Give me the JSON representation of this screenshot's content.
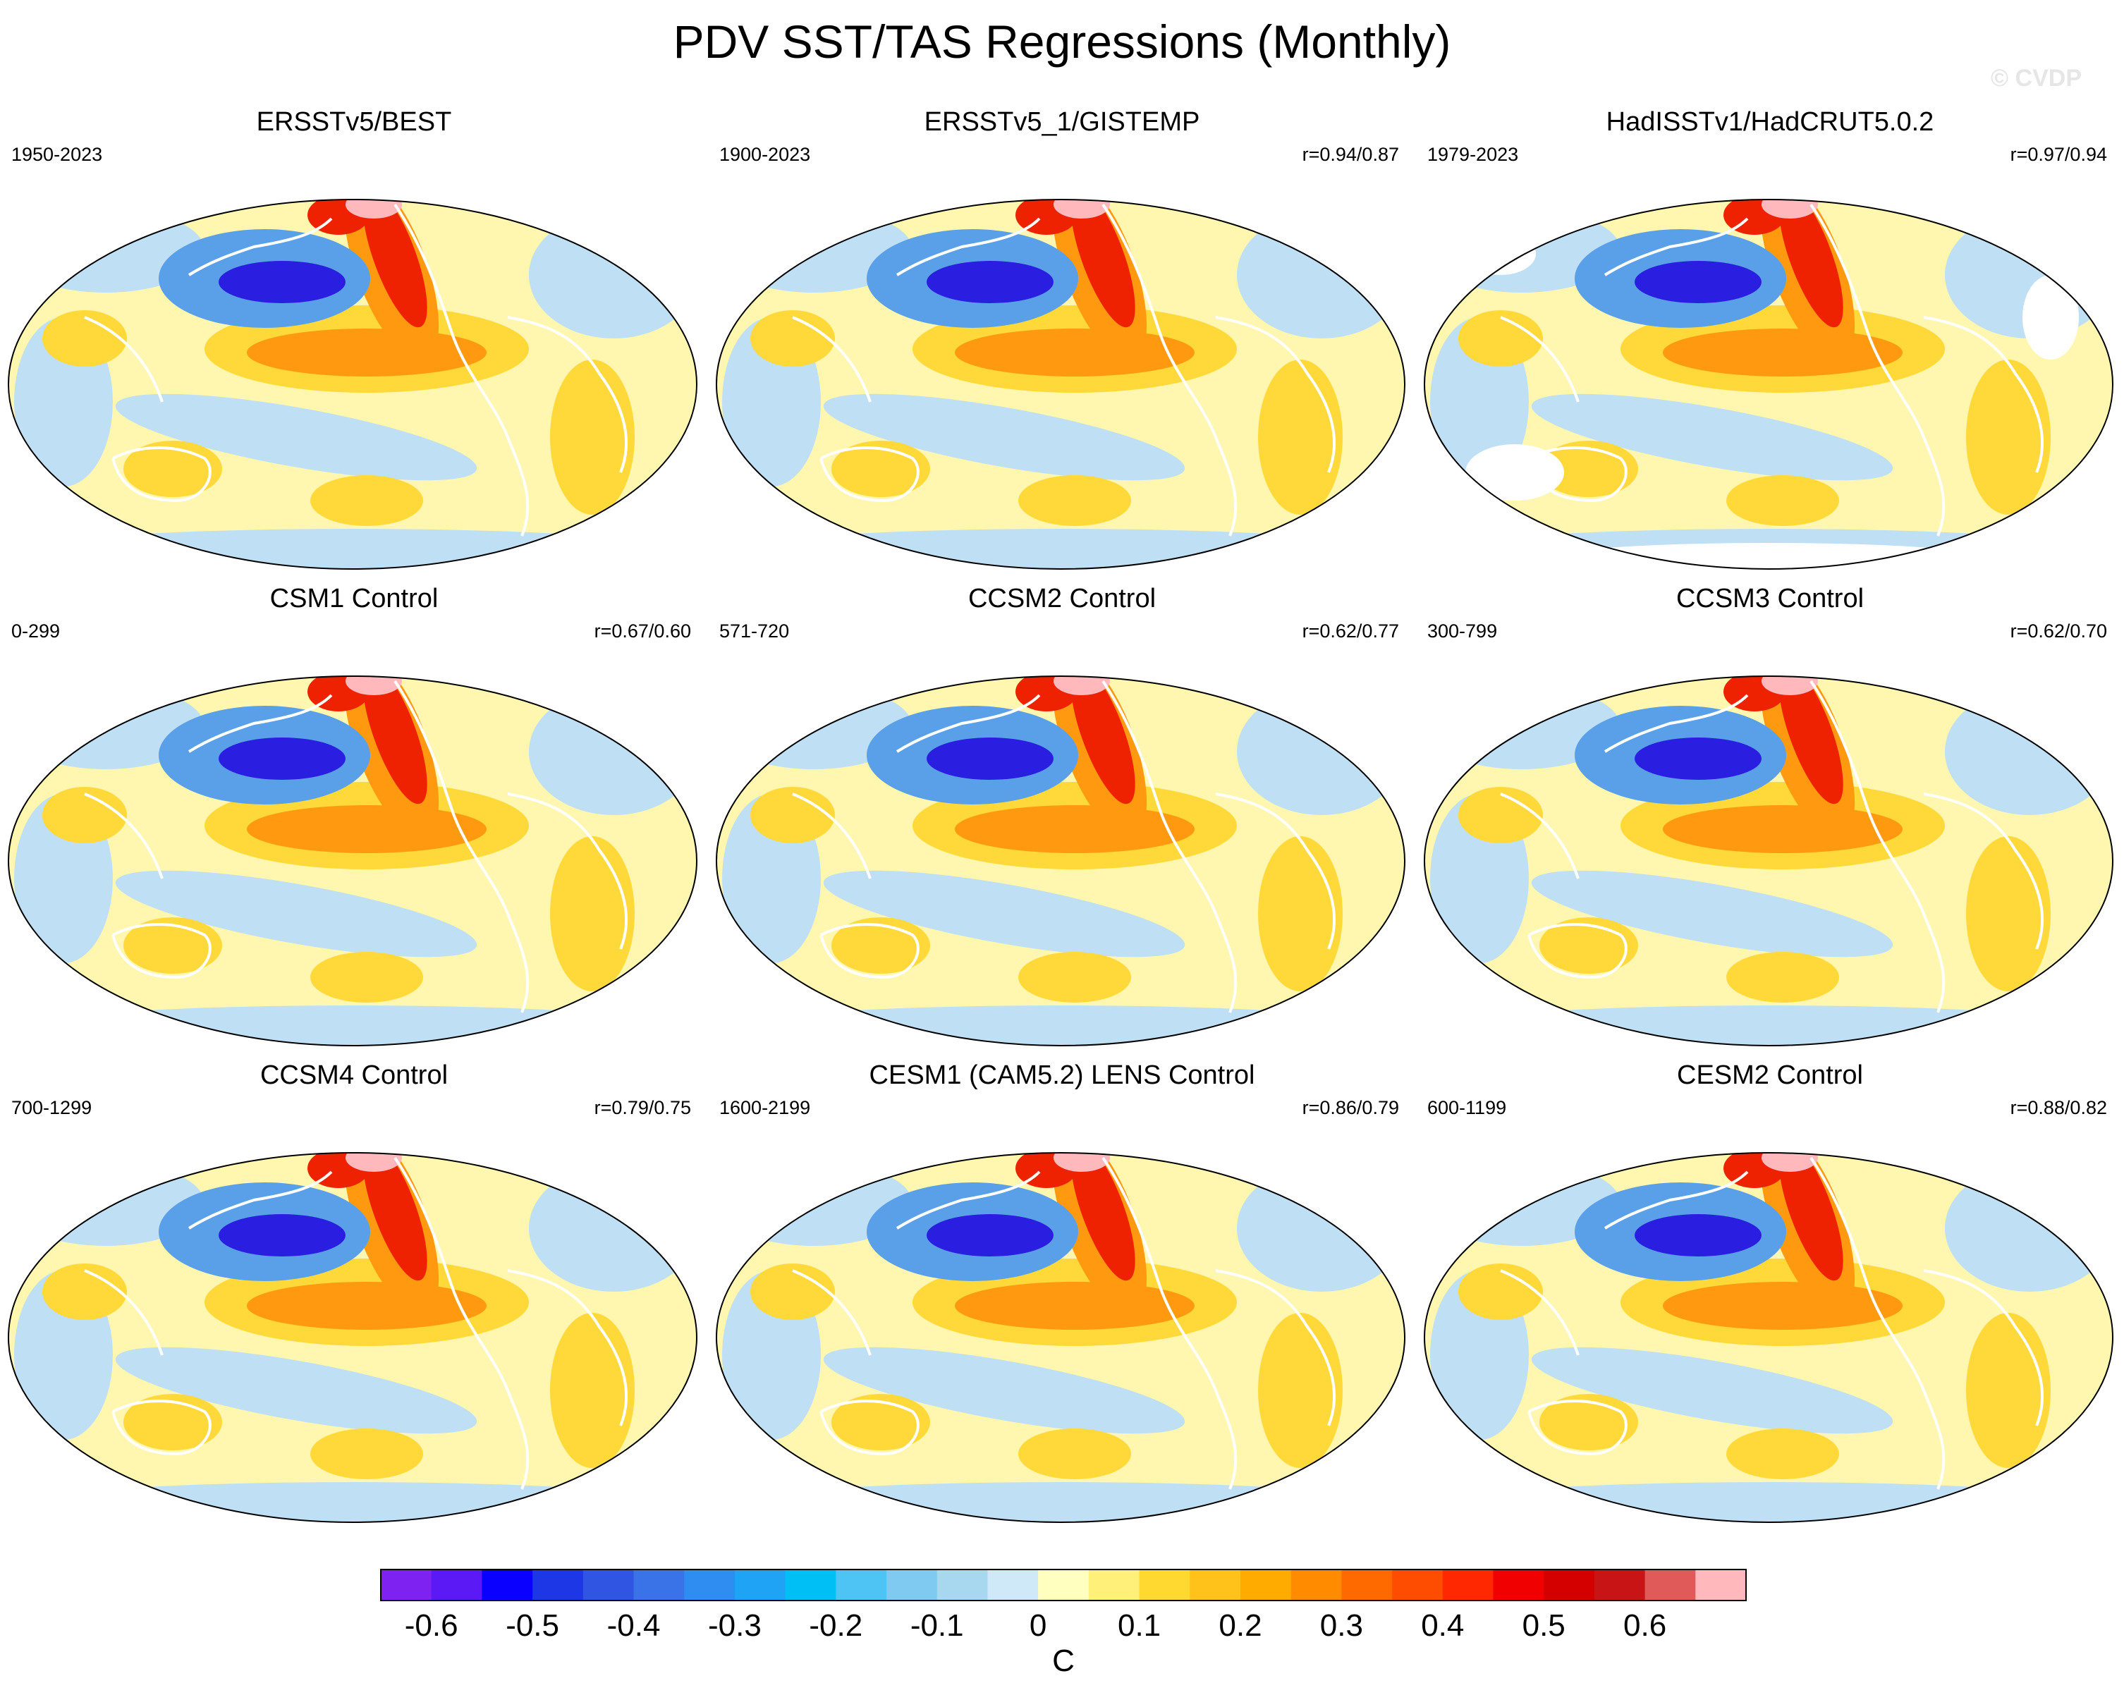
{
  "title": "PDV SST/TAS Regressions (Monthly)",
  "watermark": "© CVDP",
  "units": "C",
  "panels": [
    {
      "title": "ERSSTv5/BEST",
      "period": "1950-2023",
      "r": "",
      "masked": false
    },
    {
      "title": "ERSSTv5_1/GISTEMP",
      "period": "1900-2023",
      "r": "r=0.94/0.87",
      "masked": false
    },
    {
      "title": "HadISSTv1/HadCRUT5.0.2",
      "period": "1979-2023",
      "r": "r=0.97/0.94",
      "masked": true
    },
    {
      "title": "CSM1 Control",
      "period": "0-299",
      "r": "r=0.67/0.60",
      "masked": false
    },
    {
      "title": "CCSM2 Control",
      "period": "571-720",
      "r": "r=0.62/0.77",
      "masked": false
    },
    {
      "title": "CCSM3 Control",
      "period": "300-799",
      "r": "r=0.62/0.70",
      "masked": false
    },
    {
      "title": "CCSM4 Control",
      "period": "700-1299",
      "r": "r=0.79/0.75",
      "masked": false
    },
    {
      "title": "CESM1 (CAM5.2) LENS Control",
      "period": "1600-2199",
      "r": "r=0.86/0.79",
      "masked": false
    },
    {
      "title": "CESM2 Control",
      "period": "600-1199",
      "r": "r=0.88/0.82",
      "masked": false
    }
  ],
  "colorbar": {
    "colors": [
      "#7d22f0",
      "#5a19f5",
      "#0a00ff",
      "#1e37e6",
      "#3055e2",
      "#3a73e8",
      "#2f8cf0",
      "#1fa3f5",
      "#00bff5",
      "#4ec4f5",
      "#7ecaf0",
      "#a8d8f0",
      "#cfe9f8",
      "#ffffc0",
      "#fff07a",
      "#ffd930",
      "#ffc21a",
      "#ffab00",
      "#ff8c00",
      "#ff6a00",
      "#ff4d00",
      "#ff2800",
      "#f00000",
      "#d40000",
      "#c81414",
      "#e05a5a",
      "#ffb8bc"
    ],
    "labels": [
      "-0.6",
      "-0.5",
      "-0.4",
      "-0.3",
      "-0.2",
      "-0.1",
      "0",
      "0.1",
      "0.2",
      "0.3",
      "0.4",
      "0.5",
      "0.6"
    ]
  },
  "map_colors": {
    "background": "#fff6b0",
    "cool": "#bfdff5",
    "cool_strong": "#5aa0e8",
    "warm": "#ffd93a",
    "warm_strong": "#ff9a10",
    "hot": "#ee2200",
    "very_hot": "#ffb8bc",
    "deep_cold": "#2a1fe0",
    "coast": "#ffffff"
  }
}
